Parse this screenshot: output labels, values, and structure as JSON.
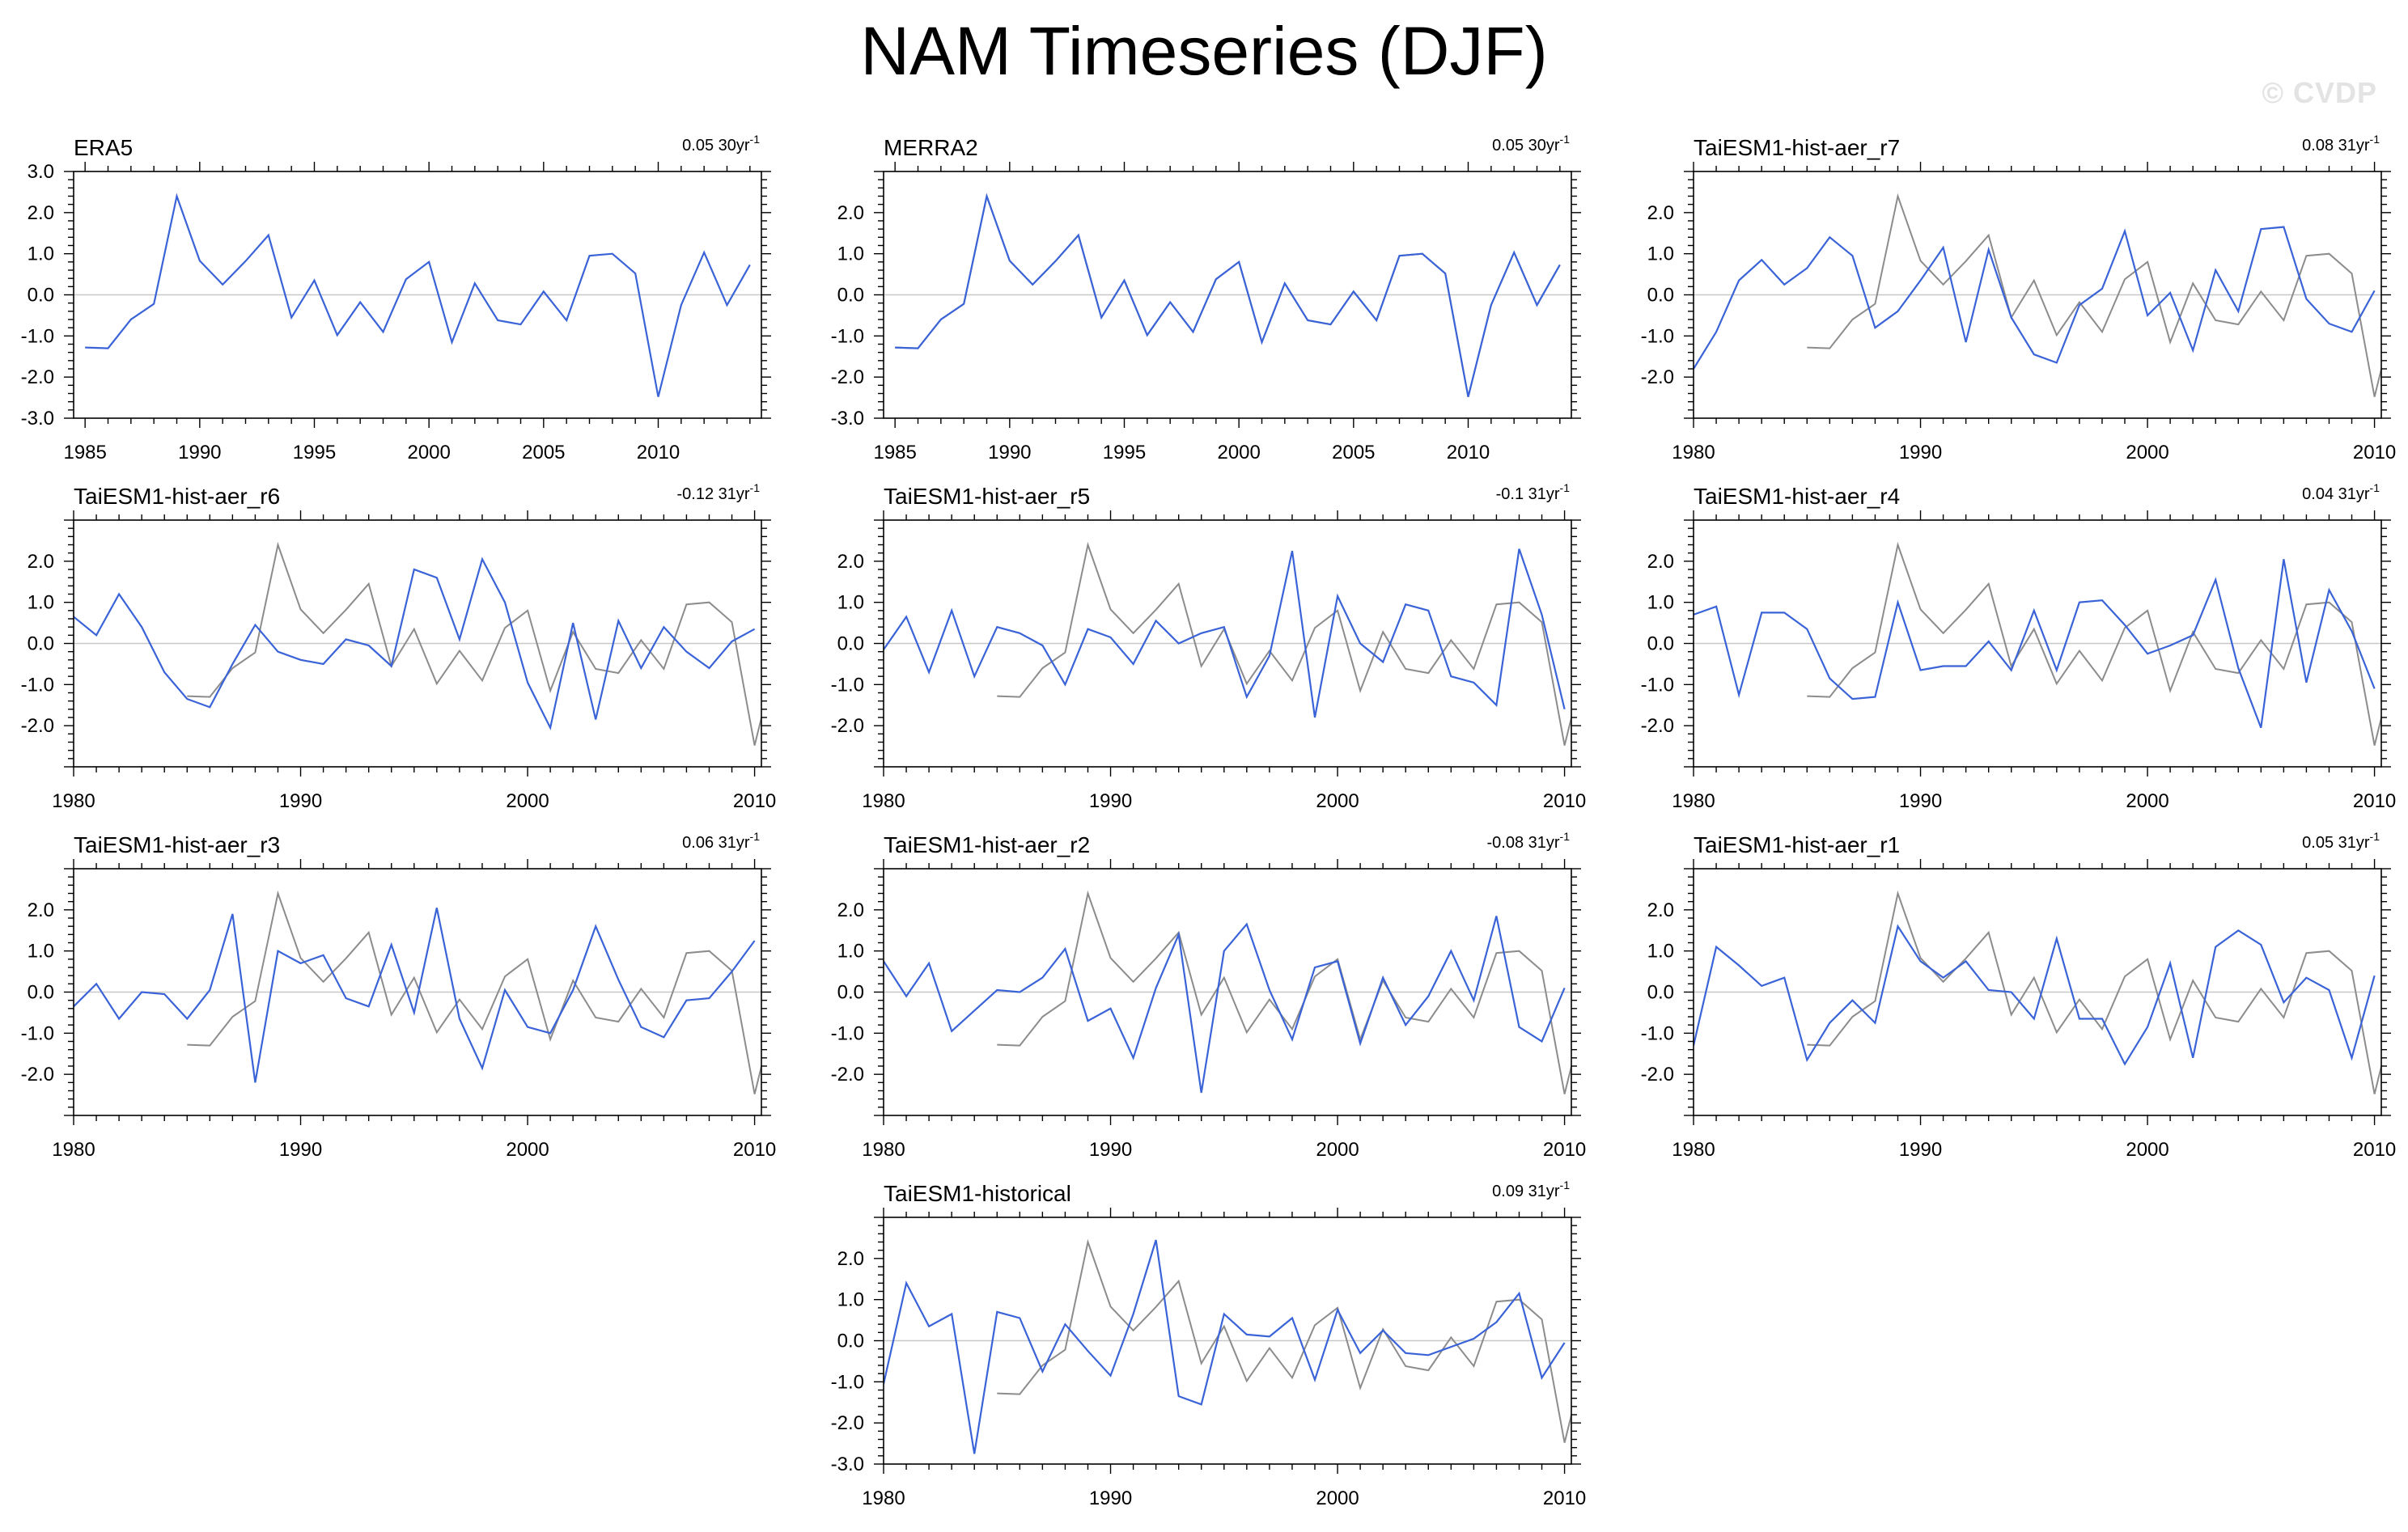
{
  "title": "NAM Timeseries (DJF)",
  "watermark": "© CVDP",
  "colors": {
    "model_line": "#3a63d8",
    "obs_line": "#8c8c8c",
    "zero_line": "#c8c8c8",
    "frame": "#000000"
  },
  "chart_data": [
    {
      "type": "line",
      "name": "ERA5",
      "trend": "0.05 30yr",
      "trend_sup": "-1",
      "xlim": [
        1984.5,
        2014.5
      ],
      "ylim": [
        -3,
        3
      ],
      "yticks": [
        -3,
        -2,
        -1,
        0,
        1,
        2,
        3
      ],
      "xticks": [
        1985,
        1990,
        1995,
        2000,
        2005,
        2010
      ],
      "show_obs": false,
      "series": [
        {
          "name": "ERA5",
          "x0": 1985,
          "values": [
            -1.28,
            -1.3,
            -0.6,
            -0.22,
            2.4,
            0.83,
            0.25,
            0.82,
            1.45,
            -0.55,
            0.35,
            -0.98,
            -0.18,
            -0.9,
            0.38,
            0.8,
            -1.15,
            0.28,
            -0.62,
            -0.72,
            0.08,
            -0.62,
            0.95,
            1.0,
            0.52,
            -2.48,
            -0.25,
            1.03,
            -0.25,
            0.73
          ]
        }
      ]
    },
    {
      "type": "line",
      "name": "MERRA2",
      "trend": "0.05 30yr",
      "trend_sup": "-1",
      "xlim": [
        1984.5,
        2014.5
      ],
      "ylim": [
        -3,
        3
      ],
      "yticks": [
        -3,
        -2,
        -1,
        0,
        1,
        2
      ],
      "xticks": [
        1985,
        1990,
        1995,
        2000,
        2005,
        2010
      ],
      "show_obs": true,
      "series": [
        {
          "name": "MERRA2",
          "x0": 1985,
          "values": [
            -1.28,
            -1.3,
            -0.6,
            -0.22,
            2.4,
            0.83,
            0.25,
            0.82,
            1.45,
            -0.55,
            0.35,
            -0.98,
            -0.18,
            -0.9,
            0.38,
            0.8,
            -1.15,
            0.28,
            -0.62,
            -0.72,
            0.08,
            -0.62,
            0.95,
            1.0,
            0.52,
            -2.48,
            -0.25,
            1.03,
            -0.25,
            0.73
          ]
        }
      ]
    },
    {
      "type": "line",
      "name": "TaiESM1-hist-aer_r7",
      "trend": "0.08 31yr",
      "trend_sup": "-1",
      "xlim": [
        1980,
        2010.3
      ],
      "ylim": [
        -3,
        3
      ],
      "yticks": [
        -2,
        -1,
        0,
        1,
        2
      ],
      "xticks": [
        1980,
        1990,
        2000,
        2010
      ],
      "show_obs": true,
      "series": [
        {
          "name": "TaiESM1-hist-aer_r7",
          "x0": 1980,
          "values": [
            -1.8,
            -0.9,
            0.35,
            0.85,
            0.25,
            0.65,
            1.4,
            0.95,
            -0.8,
            -0.4,
            0.35,
            1.15,
            -1.15,
            1.1,
            -0.55,
            -1.45,
            -1.65,
            -0.25,
            0.15,
            1.55,
            -0.5,
            0.05,
            -1.35,
            0.6,
            -0.4,
            1.6,
            1.65,
            -0.1,
            -0.7,
            -0.9,
            0.1
          ]
        }
      ]
    },
    {
      "type": "line",
      "name": "TaiESM1-hist-aer_r6",
      "trend": "-0.12 31yr",
      "trend_sup": "-1",
      "xlim": [
        1980,
        2010.3
      ],
      "ylim": [
        -3,
        3
      ],
      "yticks": [
        -2,
        -1,
        0,
        1,
        2
      ],
      "xticks": [
        1980,
        1990,
        2000,
        2010
      ],
      "show_obs": true,
      "series": [
        {
          "name": "TaiESM1-hist-aer_r6",
          "x0": 1980,
          "values": [
            0.65,
            0.2,
            1.2,
            0.4,
            -0.7,
            -1.35,
            -1.55,
            -0.5,
            0.45,
            -0.2,
            -0.4,
            -0.5,
            0.1,
            -0.05,
            -0.55,
            1.8,
            1.6,
            0.1,
            2.05,
            1.0,
            -0.95,
            -2.05,
            0.5,
            -1.85,
            0.55,
            -0.6,
            0.4,
            -0.2,
            -0.6,
            0.05,
            0.35
          ]
        }
      ]
    },
    {
      "type": "line",
      "name": "TaiESM1-hist-aer_r5",
      "trend": "-0.1 31yr",
      "trend_sup": "-1",
      "xlim": [
        1980,
        2010.3
      ],
      "ylim": [
        -3,
        3
      ],
      "yticks": [
        -2,
        -1,
        0,
        1,
        2
      ],
      "xticks": [
        1980,
        1990,
        2000,
        2010
      ],
      "show_obs": true,
      "series": [
        {
          "name": "TaiESM1-hist-aer_r5",
          "x0": 1980,
          "values": [
            -0.15,
            0.65,
            -0.7,
            0.8,
            -0.8,
            0.4,
            0.25,
            -0.05,
            -1.0,
            0.35,
            0.15,
            -0.5,
            0.55,
            0.0,
            0.25,
            0.4,
            -1.3,
            -0.3,
            2.25,
            -1.8,
            1.15,
            0.0,
            -0.45,
            0.95,
            0.8,
            -0.8,
            -0.95,
            -1.5,
            2.3,
            0.7,
            -1.6
          ]
        }
      ]
    },
    {
      "type": "line",
      "name": "TaiESM1-hist-aer_r4",
      "trend": "0.04 31yr",
      "trend_sup": "-1",
      "xlim": [
        1980,
        2010.3
      ],
      "ylim": [
        -3,
        3
      ],
      "yticks": [
        -2,
        -1,
        0,
        1,
        2
      ],
      "xticks": [
        1980,
        1990,
        2000,
        2010
      ],
      "show_obs": true,
      "series": [
        {
          "name": "TaiESM1-hist-aer_r4",
          "x0": 1980,
          "values": [
            0.7,
            0.9,
            -1.25,
            0.75,
            0.75,
            0.35,
            -0.85,
            -1.35,
            -1.3,
            1.0,
            -0.65,
            -0.55,
            -0.55,
            0.05,
            -0.65,
            0.8,
            -0.65,
            1.0,
            1.05,
            0.45,
            -0.25,
            -0.05,
            0.2,
            1.55,
            -0.6,
            -2.05,
            2.05,
            -0.95,
            1.3,
            0.3,
            -1.1
          ]
        }
      ]
    },
    {
      "type": "line",
      "name": "TaiESM1-hist-aer_r3",
      "trend": "0.06 31yr",
      "trend_sup": "-1",
      "xlim": [
        1980,
        2010.3
      ],
      "ylim": [
        -3,
        3
      ],
      "yticks": [
        -2,
        -1,
        0,
        1,
        2
      ],
      "xticks": [
        1980,
        1990,
        2000,
        2010
      ],
      "show_obs": true,
      "series": [
        {
          "name": "TaiESM1-hist-aer_r3",
          "x0": 1980,
          "values": [
            -0.35,
            0.2,
            -0.65,
            0.0,
            -0.05,
            -0.65,
            0.05,
            1.9,
            -2.2,
            1.0,
            0.7,
            0.9,
            -0.15,
            -0.35,
            1.15,
            -0.5,
            2.05,
            -0.65,
            -1.85,
            0.05,
            -0.85,
            -1.0,
            0.05,
            1.6,
            0.3,
            -0.85,
            -1.1,
            -0.2,
            -0.15,
            0.5,
            1.25
          ]
        }
      ]
    },
    {
      "type": "line",
      "name": "TaiESM1-hist-aer_r2",
      "trend": "-0.08 31yr",
      "trend_sup": "-1",
      "xlim": [
        1980,
        2010.3
      ],
      "ylim": [
        -3,
        3
      ],
      "yticks": [
        -2,
        -1,
        0,
        1,
        2
      ],
      "xticks": [
        1980,
        1990,
        2000,
        2010
      ],
      "show_obs": true,
      "series": [
        {
          "name": "TaiESM1-hist-aer_r2",
          "x0": 1980,
          "values": [
            0.75,
            -0.1,
            0.7,
            -0.95,
            -0.45,
            0.05,
            0.0,
            0.35,
            1.05,
            -0.7,
            -0.4,
            -1.6,
            0.1,
            1.4,
            -2.45,
            1.0,
            1.65,
            0.05,
            -1.15,
            0.6,
            0.75,
            -1.25,
            0.35,
            -0.8,
            -0.1,
            1.0,
            -0.2,
            1.85,
            -0.85,
            -1.2,
            0.1
          ]
        }
      ]
    },
    {
      "type": "line",
      "name": "TaiESM1-hist-aer_r1",
      "trend": "0.05 31yr",
      "trend_sup": "-1",
      "xlim": [
        1980,
        2010.3
      ],
      "ylim": [
        -3,
        3
      ],
      "yticks": [
        -2,
        -1,
        0,
        1,
        2
      ],
      "xticks": [
        1980,
        1990,
        2000,
        2010
      ],
      "show_obs": true,
      "series": [
        {
          "name": "TaiESM1-hist-aer_r1",
          "x0": 1980,
          "values": [
            -1.3,
            1.1,
            0.65,
            0.15,
            0.35,
            -1.65,
            -0.75,
            -0.2,
            -0.75,
            1.6,
            0.75,
            0.35,
            0.75,
            0.05,
            0.0,
            -0.65,
            1.3,
            -0.65,
            -0.65,
            -1.75,
            -0.85,
            0.7,
            -1.6,
            1.1,
            1.5,
            1.15,
            -0.25,
            0.35,
            0.05,
            -1.6,
            0.4
          ]
        }
      ]
    },
    {
      "type": "line",
      "name": "TaiESM1-historical",
      "trend": "0.09 31yr",
      "trend_sup": "-1",
      "xlim": [
        1980,
        2010.3
      ],
      "ylim": [
        -3,
        3
      ],
      "yticks": [
        -3,
        -2,
        -1,
        0,
        1,
        2
      ],
      "xticks": [
        1980,
        1990,
        2000,
        2010
      ],
      "show_obs": true,
      "series": [
        {
          "name": "TaiESM1-historical",
          "x0": 1980,
          "values": [
            -1.05,
            1.4,
            0.35,
            0.65,
            -2.75,
            0.7,
            0.55,
            -0.75,
            0.4,
            -0.25,
            -0.85,
            0.65,
            2.45,
            -1.35,
            -1.55,
            0.65,
            0.15,
            0.1,
            0.55,
            -0.95,
            0.75,
            -0.3,
            0.25,
            -0.3,
            -0.35,
            -0.15,
            0.05,
            0.45,
            1.15,
            -0.9,
            -0.05
          ]
        }
      ]
    }
  ],
  "obs_reference": {
    "name": "ERA5",
    "x0": 1985,
    "values": [
      -1.28,
      -1.3,
      -0.6,
      -0.22,
      2.4,
      0.83,
      0.25,
      0.82,
      1.45,
      -0.55,
      0.35,
      -0.98,
      -0.18,
      -0.9,
      0.38,
      0.8,
      -1.15,
      0.28,
      -0.62,
      -0.72,
      0.08,
      -0.62,
      0.95,
      1.0,
      0.52,
      -2.48,
      -0.25,
      1.03,
      -0.25,
      0.73
    ]
  }
}
